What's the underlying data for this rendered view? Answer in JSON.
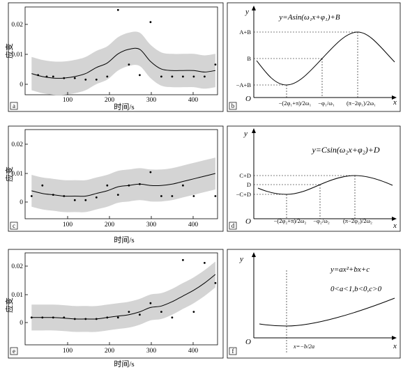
{
  "chart_data": [
    {
      "panel": "a",
      "type": "scatter",
      "xlabel": "时间/s",
      "ylabel": "应变",
      "xlim": [
        10,
        455
      ],
      "ylim": [
        -0.003,
        0.026
      ],
      "xticks": [
        "100",
        "200",
        "300",
        "400"
      ],
      "yticks": [
        "0",
        "0.01",
        "0.02"
      ],
      "points": {
        "x": [
          40,
          60,
          75,
          100,
          125,
          150,
          175,
          200,
          225,
          250,
          275,
          300,
          325,
          350,
          375,
          400,
          425,
          450
        ],
        "y": [
          0.0035,
          0.003,
          0.003,
          0.0025,
          0.0025,
          0.002,
          0.002,
          0.003,
          0.025,
          0.007,
          0.0035,
          0.021,
          0.003,
          0.003,
          0.003,
          0.003,
          0.003,
          0.007
        ]
      },
      "fit": {
        "x": [
          25,
          50,
          75,
          100,
          125,
          150,
          175,
          200,
          225,
          250,
          275,
          300,
          325,
          350,
          375,
          400,
          425,
          450
        ],
        "y": [
          0.004,
          0.003,
          0.0025,
          0.0025,
          0.003,
          0.004,
          0.006,
          0.0075,
          0.0105,
          0.012,
          0.012,
          0.008,
          0.0055,
          0.005,
          0.005,
          0.005,
          0.0045,
          0.005
        ]
      },
      "band_halfwidth": 0.0055
    },
    {
      "panel": "c",
      "type": "scatter",
      "xlabel": "时间/s",
      "ylabel": "应变",
      "xlim": [
        10,
        455
      ],
      "ylim": [
        -0.0075,
        0.026
      ],
      "xticks": [
        "100",
        "200",
        "300",
        "400"
      ],
      "yticks": [
        "0",
        "0.01",
        "0.02"
      ],
      "points": {
        "x": [
          25,
          50,
          75,
          100,
          125,
          150,
          175,
          200,
          225,
          250,
          275,
          300,
          325,
          350,
          375,
          400,
          450
        ],
        "y": [
          0.001,
          0.005,
          0.0015,
          0.001,
          -0.0005,
          -0.0005,
          0.0005,
          0.005,
          0.0015,
          0.005,
          0.0055,
          0.01,
          0.001,
          0.001,
          0.005,
          0.001,
          0.001
        ]
      },
      "fit": {
        "x": [
          25,
          50,
          75,
          100,
          125,
          150,
          175,
          200,
          225,
          250,
          275,
          300,
          325,
          350,
          375,
          400,
          425,
          450
        ],
        "y": [
          0.003,
          0.002,
          0.0015,
          0.001,
          0.001,
          0.001,
          0.002,
          0.003,
          0.0045,
          0.005,
          0.0055,
          0.005,
          0.005,
          0.0055,
          0.0065,
          0.0075,
          0.0085,
          0.0095
        ]
      },
      "band_halfwidth": 0.006
    },
    {
      "panel": "e",
      "type": "scatter",
      "xlabel": "时间/s",
      "ylabel": "应变",
      "xlim": [
        10,
        455
      ],
      "ylim": [
        -0.0085,
        0.0235
      ],
      "xticks": [
        "100",
        "200",
        "300",
        "400"
      ],
      "yticks": [
        "0",
        "0.01",
        "0.02"
      ],
      "points": {
        "x": [
          25,
          50,
          75,
          100,
          125,
          150,
          175,
          200,
          225,
          250,
          275,
          300,
          325,
          350,
          375,
          400,
          425,
          450
        ],
        "y": [
          0.001,
          0.001,
          0.001,
          0.001,
          0.0005,
          0.0005,
          0.0005,
          0.001,
          0.001,
          0.003,
          0.002,
          0.006,
          0.003,
          0.001,
          0.021,
          0.003,
          0.02,
          0.013
        ]
      },
      "fit": {
        "x": [
          25,
          50,
          75,
          100,
          125,
          150,
          175,
          200,
          225,
          250,
          275,
          300,
          325,
          350,
          375,
          400,
          425,
          450
        ],
        "y": [
          0.001,
          0.001,
          0.001,
          0.0008,
          0.0005,
          0.0005,
          0.0005,
          0.001,
          0.0015,
          0.002,
          0.003,
          0.0045,
          0.005,
          0.0065,
          0.0085,
          0.0105,
          0.013,
          0.016
        ]
      },
      "band_halfwidth": 0.0045
    }
  ],
  "panels": {
    "a": {
      "tag": "a"
    },
    "c": {
      "tag": "c"
    },
    "e": {
      "tag": "e"
    },
    "b": {
      "tag": "b",
      "ylabel": "y",
      "xlabel": "x",
      "origin": "O",
      "equation": "y=Asin(ω₁x+φ₁)+B",
      "y_marks": [
        "A+B",
        "B",
        "−A+B"
      ],
      "x_marks": [
        "−(2φ₁+π)/2ω₁",
        "−φ₁/ω₁",
        "(π−2φ₁)/2ω₁"
      ]
    },
    "d": {
      "tag": "d",
      "ylabel": "y",
      "xlabel": "x",
      "origin": "O",
      "equation": "y=Csin(ω₂x+φ₂)+D",
      "y_marks": [
        "C+D",
        "D",
        "−C+D"
      ],
      "x_marks": [
        "−(2φ₂+π)/2ω₂",
        "−φ₂/ω₂",
        "(π−2φ₂)/2ω₂"
      ]
    },
    "f": {
      "tag": "f",
      "ylabel": "y",
      "xlabel": "x",
      "origin": "O",
      "equation": "y=ax²+bx+c",
      "condition": "0<a<1,b<0,c>0",
      "x_mark": "x=−b/2a"
    }
  },
  "colors": {
    "band": "#d4d4d4",
    "line": "#000000"
  }
}
